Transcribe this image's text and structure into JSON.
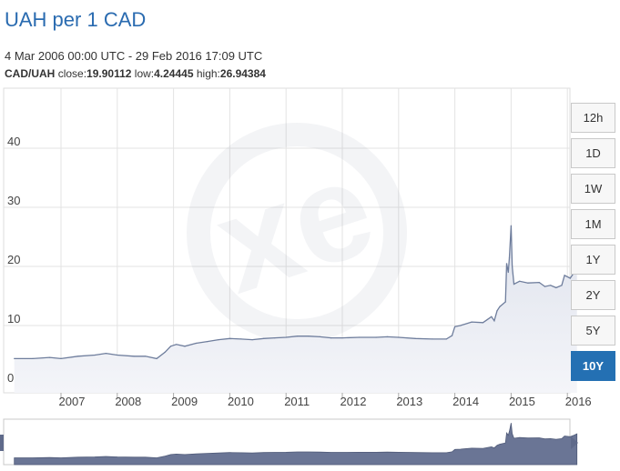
{
  "title": "UAH per 1 CAD",
  "date_range": "4 Mar 2006 00:00 UTC - 29 Feb 2016 17:09 UTC",
  "stats": {
    "pair": "CAD/UAH",
    "close_label": "close:",
    "close": "19.90112",
    "low_label": "low:",
    "low": "4.24445",
    "high_label": "high:",
    "high": "26.94384"
  },
  "range_buttons": [
    {
      "label": "12h",
      "active": false
    },
    {
      "label": "1D",
      "active": false
    },
    {
      "label": "1W",
      "active": false
    },
    {
      "label": "1M",
      "active": false
    },
    {
      "label": "1Y",
      "active": false
    },
    {
      "label": "2Y",
      "active": false
    },
    {
      "label": "5Y",
      "active": false
    },
    {
      "label": "10Y",
      "active": true
    }
  ],
  "colors": {
    "line": "#6e7d9c",
    "area": "#e9ecf3",
    "navigator_fill": "#6a7595",
    "accent": "#2470b3",
    "title": "#2a6bb0"
  },
  "chart_data": {
    "type": "area",
    "xlim": [
      2006.17,
      2016.17
    ],
    "ylim": [
      0,
      50
    ],
    "y_ticks": [
      "0",
      "10",
      "20",
      "30",
      "40"
    ],
    "x_ticks": [
      "2007",
      "2008",
      "2009",
      "2010",
      "2011",
      "2012",
      "2013",
      "2014",
      "2015",
      "2016"
    ],
    "grid": true,
    "series": [
      {
        "points": [
          [
            2006.17,
            4.4
          ],
          [
            2006.5,
            4.4
          ],
          [
            2006.8,
            4.6
          ],
          [
            2007.0,
            4.4
          ],
          [
            2007.3,
            4.8
          ],
          [
            2007.6,
            5.0
          ],
          [
            2007.8,
            5.3
          ],
          [
            2008.0,
            5.0
          ],
          [
            2008.3,
            4.8
          ],
          [
            2008.5,
            4.8
          ],
          [
            2008.7,
            4.4
          ],
          [
            2008.85,
            5.5
          ],
          [
            2008.95,
            6.5
          ],
          [
            2009.05,
            6.8
          ],
          [
            2009.2,
            6.5
          ],
          [
            2009.4,
            7.0
          ],
          [
            2009.6,
            7.3
          ],
          [
            2009.8,
            7.6
          ],
          [
            2010.0,
            7.8
          ],
          [
            2010.2,
            7.7
          ],
          [
            2010.4,
            7.6
          ],
          [
            2010.6,
            7.8
          ],
          [
            2010.8,
            7.9
          ],
          [
            2011.0,
            8.0
          ],
          [
            2011.2,
            8.2
          ],
          [
            2011.4,
            8.2
          ],
          [
            2011.6,
            8.1
          ],
          [
            2011.8,
            7.9
          ],
          [
            2012.0,
            7.9
          ],
          [
            2012.3,
            8.0
          ],
          [
            2012.6,
            8.0
          ],
          [
            2012.8,
            8.1
          ],
          [
            2013.0,
            8.0
          ],
          [
            2013.3,
            7.8
          ],
          [
            2013.6,
            7.7
          ],
          [
            2013.85,
            7.7
          ],
          [
            2013.95,
            8.3
          ],
          [
            2014.0,
            9.8
          ],
          [
            2014.1,
            10.0
          ],
          [
            2014.3,
            10.6
          ],
          [
            2014.5,
            10.5
          ],
          [
            2014.65,
            11.5
          ],
          [
            2014.7,
            10.8
          ],
          [
            2014.75,
            12.5
          ],
          [
            2014.8,
            13.2
          ],
          [
            2014.9,
            14.0
          ],
          [
            2014.92,
            20.5
          ],
          [
            2014.95,
            19.0
          ],
          [
            2014.97,
            21.5
          ],
          [
            2015.0,
            26.9
          ],
          [
            2015.02,
            20.0
          ],
          [
            2015.05,
            17.0
          ],
          [
            2015.15,
            17.5
          ],
          [
            2015.3,
            17.2
          ],
          [
            2015.5,
            17.3
          ],
          [
            2015.6,
            16.6
          ],
          [
            2015.7,
            16.8
          ],
          [
            2015.8,
            16.4
          ],
          [
            2015.9,
            16.8
          ],
          [
            2015.95,
            18.5
          ],
          [
            2016.05,
            18.0
          ],
          [
            2016.12,
            19.0
          ],
          [
            2016.17,
            19.9
          ]
        ]
      }
    ]
  }
}
